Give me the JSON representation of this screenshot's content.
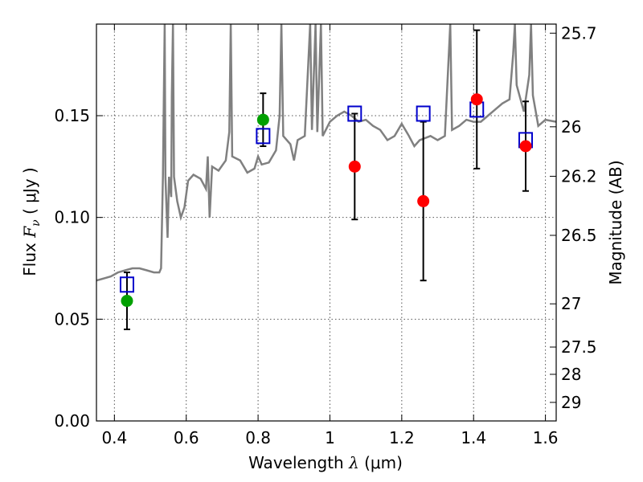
{
  "chart_data": {
    "type": "scatter",
    "xlabel": "Wavelength",
    "xlabel_symbol": "λ",
    "xlabel_unit": "(μm)",
    "ylabel": "Flux",
    "ylabel_symbol": "F",
    "ylabel_subscript": "ν",
    "ylabel_unit": "( μJy )",
    "y2label": "Magnitude (AB)",
    "xlim": [
      0.35,
      1.63
    ],
    "ylim": [
      0.0,
      0.195
    ],
    "grid": true,
    "legend": "none",
    "x_ticks": [
      0.4,
      0.6,
      0.8,
      1.0,
      1.2,
      1.4,
      1.6
    ],
    "x_tick_labels": [
      "0.4",
      "0.6",
      "0.8",
      "1",
      "1.2",
      "1.4",
      "1.6"
    ],
    "y_ticks": [
      0.0,
      0.05,
      0.1,
      0.15
    ],
    "y_tick_labels": [
      "0.00",
      "0.05",
      "0.10",
      "0.15"
    ],
    "magnitude_ticks": [
      {
        "label": "25.7",
        "mag": 25.7
      },
      {
        "label": "26",
        "mag": 26.0
      },
      {
        "label": "26.2",
        "mag": 26.2
      },
      {
        "label": "26.5",
        "mag": 26.5
      },
      {
        "label": "27",
        "mag": 27.0
      },
      {
        "label": "27.5",
        "mag": 27.5
      },
      {
        "label": "28",
        "mag": 28.0
      },
      {
        "label": "29",
        "mag": 29.0
      }
    ],
    "series": [
      {
        "marker": "circle",
        "color": "#00a000",
        "points": [
          {
            "x": 0.435,
            "y": 0.059,
            "err": 0.014
          },
          {
            "x": 0.814,
            "y": 0.148,
            "err": 0.013
          }
        ]
      },
      {
        "marker": "circle",
        "color": "#ff0000",
        "points": [
          {
            "x": 1.069,
            "y": 0.125,
            "err": 0.026
          },
          {
            "x": 1.26,
            "y": 0.108,
            "err": 0.039
          },
          {
            "x": 1.409,
            "y": 0.158,
            "err": 0.034
          },
          {
            "x": 1.545,
            "y": 0.135,
            "err": 0.022
          }
        ]
      },
      {
        "marker": "open-square",
        "color": "#0000cc",
        "points": [
          {
            "x": 0.435,
            "y": 0.067
          },
          {
            "x": 0.814,
            "y": 0.14
          },
          {
            "x": 1.069,
            "y": 0.151
          },
          {
            "x": 1.26,
            "y": 0.151
          },
          {
            "x": 1.409,
            "y": 0.153
          },
          {
            "x": 1.545,
            "y": 0.138
          }
        ]
      },
      {
        "type": "line",
        "color": "#808080",
        "points": [
          [
            0.35,
            0.069
          ],
          [
            0.37,
            0.07
          ],
          [
            0.39,
            0.071
          ],
          [
            0.41,
            0.073
          ],
          [
            0.43,
            0.074
          ],
          [
            0.45,
            0.075
          ],
          [
            0.47,
            0.075
          ],
          [
            0.49,
            0.074
          ],
          [
            0.51,
            0.073
          ],
          [
            0.525,
            0.073
          ],
          [
            0.53,
            0.075
          ],
          [
            0.535,
            0.12
          ],
          [
            0.54,
            0.195
          ],
          [
            0.542,
            0.12
          ],
          [
            0.548,
            0.09
          ],
          [
            0.552,
            0.12
          ],
          [
            0.558,
            0.11
          ],
          [
            0.56,
            0.16
          ],
          [
            0.563,
            0.195
          ],
          [
            0.566,
            0.12
          ],
          [
            0.575,
            0.108
          ],
          [
            0.585,
            0.1
          ],
          [
            0.595,
            0.105
          ],
          [
            0.605,
            0.118
          ],
          [
            0.62,
            0.121
          ],
          [
            0.64,
            0.119
          ],
          [
            0.655,
            0.114
          ],
          [
            0.66,
            0.13
          ],
          [
            0.665,
            0.1
          ],
          [
            0.672,
            0.125
          ],
          [
            0.69,
            0.123
          ],
          [
            0.71,
            0.128
          ],
          [
            0.72,
            0.142
          ],
          [
            0.724,
            0.195
          ],
          [
            0.728,
            0.13
          ],
          [
            0.75,
            0.128
          ],
          [
            0.77,
            0.122
          ],
          [
            0.79,
            0.124
          ],
          [
            0.8,
            0.13
          ],
          [
            0.81,
            0.126
          ],
          [
            0.83,
            0.127
          ],
          [
            0.85,
            0.133
          ],
          [
            0.86,
            0.15
          ],
          [
            0.865,
            0.195
          ],
          [
            0.87,
            0.14
          ],
          [
            0.89,
            0.136
          ],
          [
            0.9,
            0.128
          ],
          [
            0.91,
            0.138
          ],
          [
            0.93,
            0.14
          ],
          [
            0.945,
            0.195
          ],
          [
            0.95,
            0.143
          ],
          [
            0.96,
            0.195
          ],
          [
            0.965,
            0.142
          ],
          [
            0.975,
            0.195
          ],
          [
            0.98,
            0.14
          ],
          [
            1.0,
            0.147
          ],
          [
            1.02,
            0.15
          ],
          [
            1.04,
            0.152
          ],
          [
            1.06,
            0.15
          ],
          [
            1.08,
            0.147
          ],
          [
            1.1,
            0.148
          ],
          [
            1.12,
            0.145
          ],
          [
            1.14,
            0.143
          ],
          [
            1.16,
            0.138
          ],
          [
            1.18,
            0.14
          ],
          [
            1.2,
            0.146
          ],
          [
            1.22,
            0.14
          ],
          [
            1.235,
            0.135
          ],
          [
            1.25,
            0.138
          ],
          [
            1.28,
            0.14
          ],
          [
            1.3,
            0.138
          ],
          [
            1.32,
            0.14
          ],
          [
            1.335,
            0.195
          ],
          [
            1.34,
            0.143
          ],
          [
            1.36,
            0.145
          ],
          [
            1.38,
            0.148
          ],
          [
            1.4,
            0.147
          ],
          [
            1.42,
            0.147
          ],
          [
            1.44,
            0.15
          ],
          [
            1.46,
            0.153
          ],
          [
            1.48,
            0.156
          ],
          [
            1.5,
            0.158
          ],
          [
            1.51,
            0.18
          ],
          [
            1.515,
            0.195
          ],
          [
            1.52,
            0.165
          ],
          [
            1.54,
            0.152
          ],
          [
            1.555,
            0.17
          ],
          [
            1.56,
            0.195
          ],
          [
            1.565,
            0.16
          ],
          [
            1.58,
            0.145
          ],
          [
            1.6,
            0.148
          ],
          [
            1.63,
            0.147
          ]
        ]
      }
    ]
  }
}
